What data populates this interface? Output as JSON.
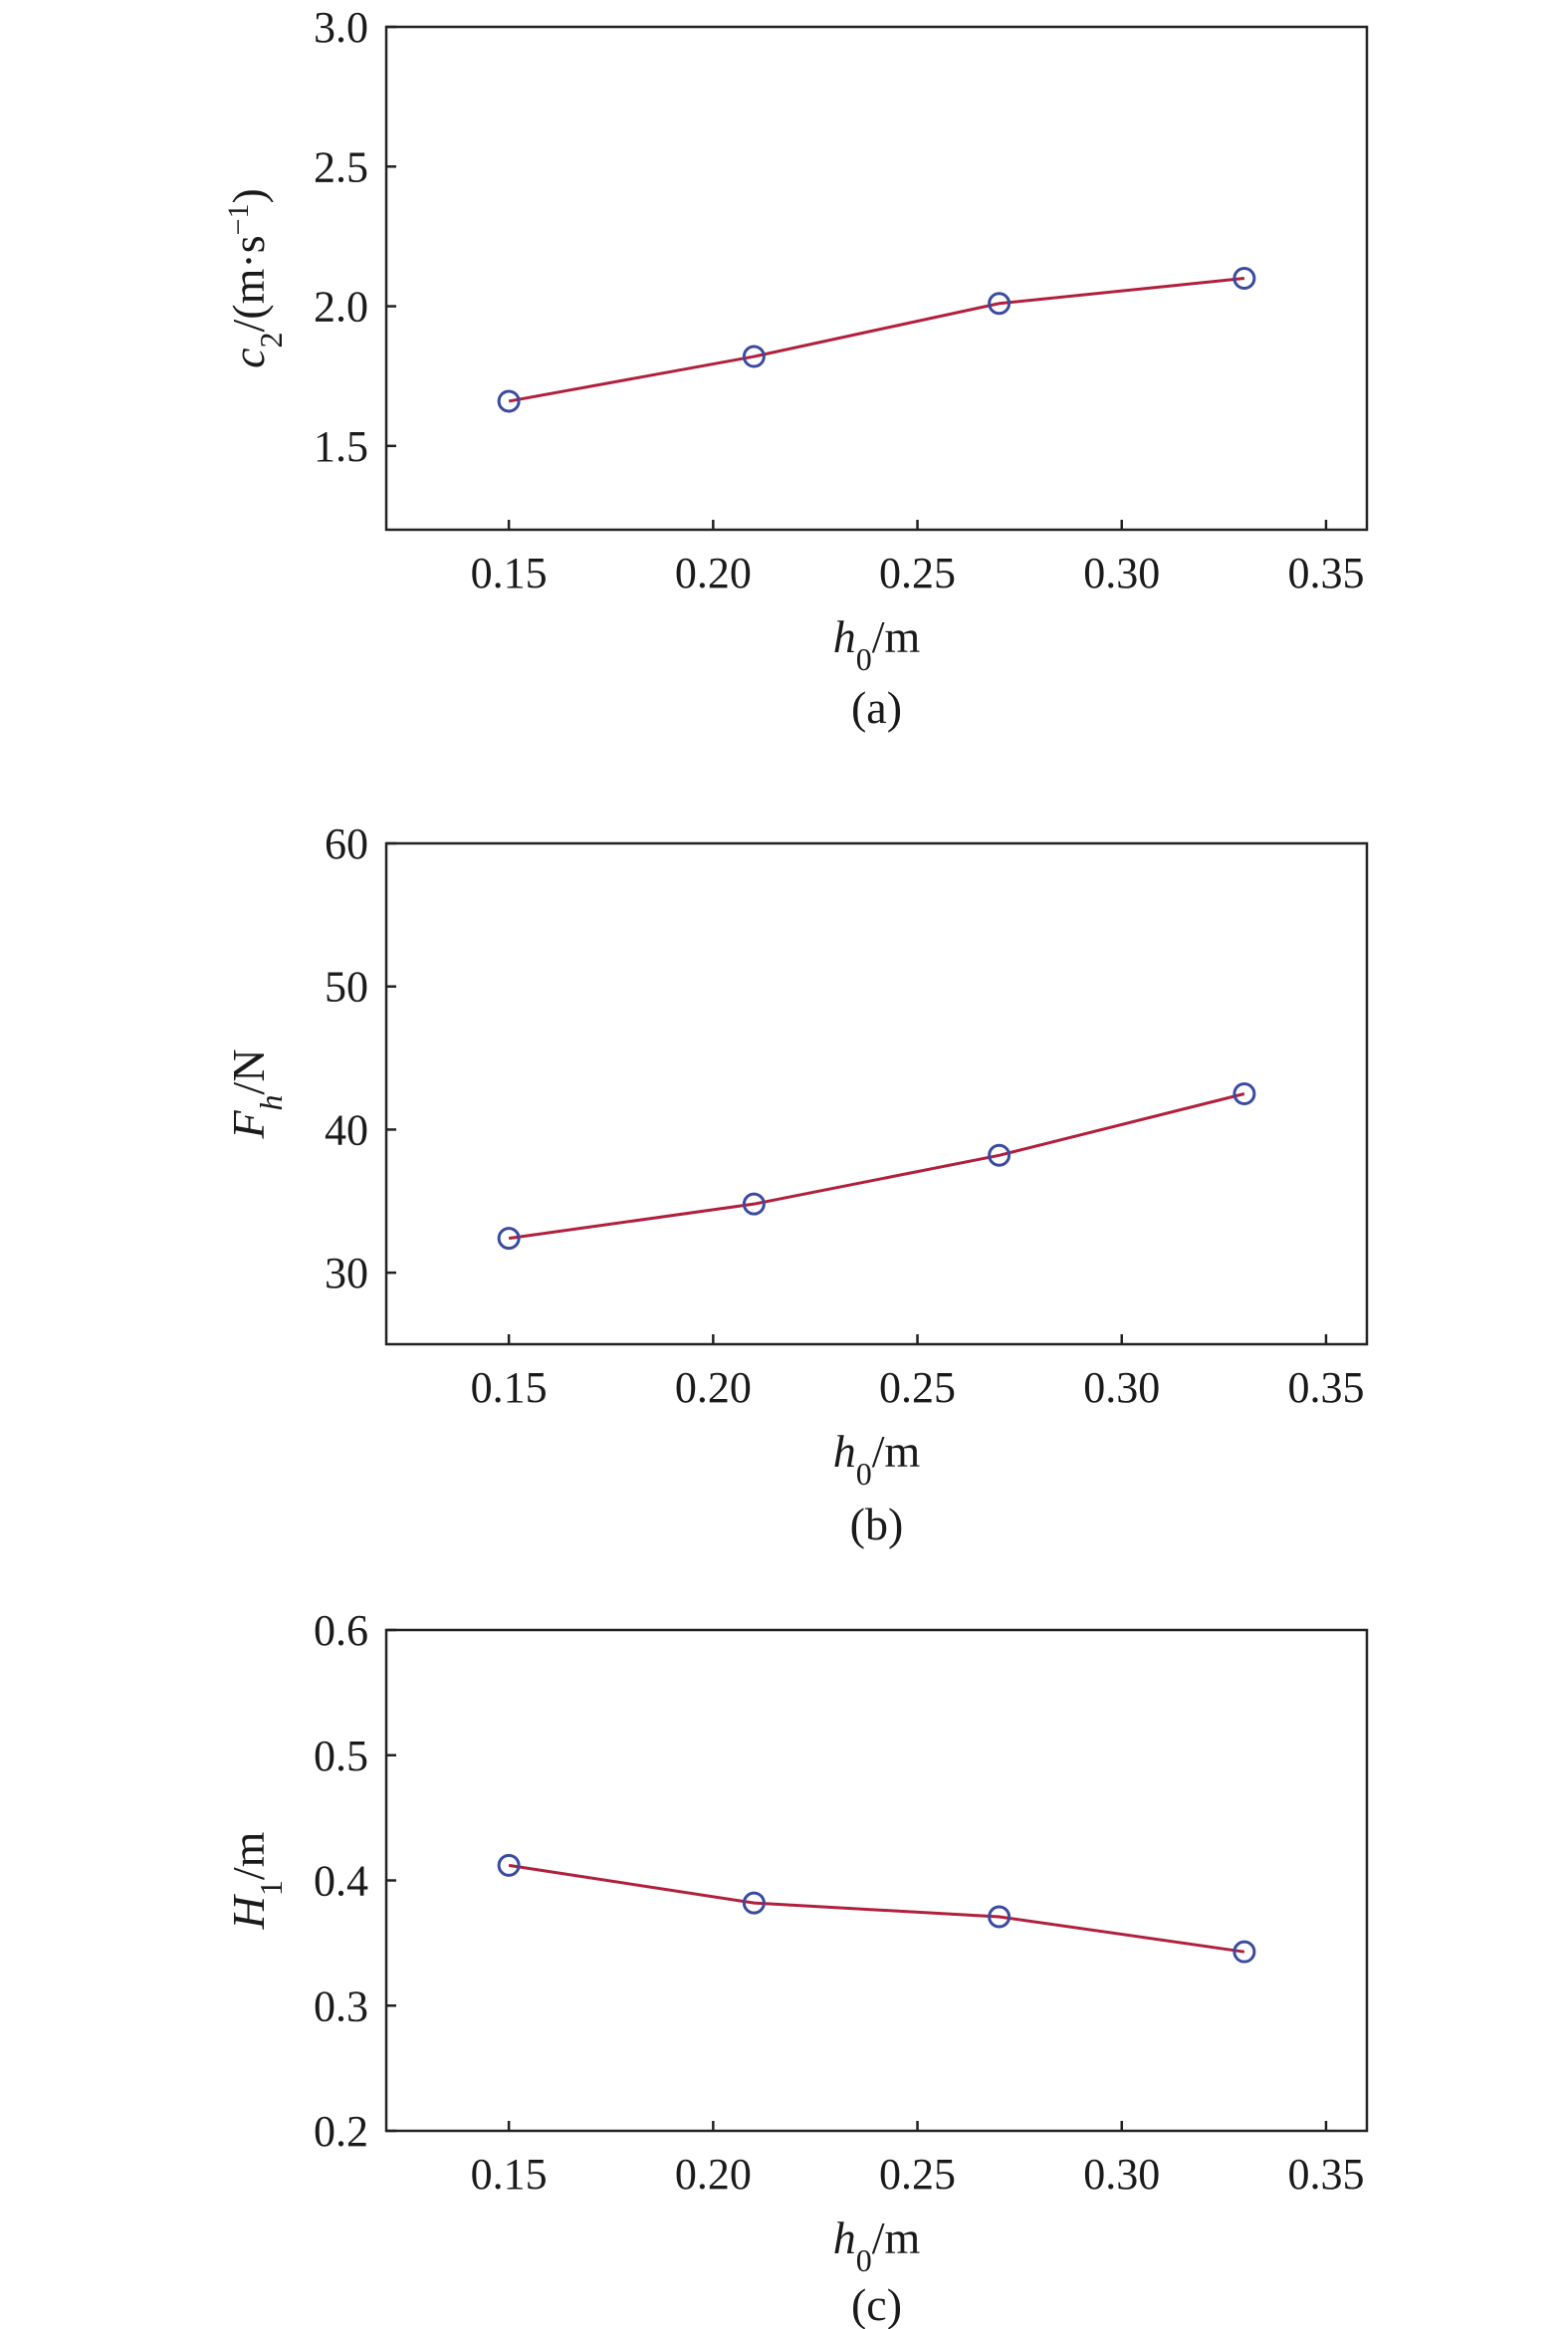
{
  "colors": {
    "line": "#b0203c",
    "marker": "#3a4aa0",
    "axis": "#222222"
  },
  "chart_data": [
    {
      "type": "line",
      "caption": "(a)",
      "xlabel": {
        "sym": "h",
        "sub": "0",
        "unit": "/m"
      },
      "ylabel": {
        "sym": "c",
        "sub": "2",
        "unit": "/(m·s",
        "sup": "−1",
        "close": ")"
      },
      "xlim": [
        0.12,
        0.36
      ],
      "ylim": [
        1.2,
        3.0
      ],
      "xticks": [
        0.15,
        0.2,
        0.25,
        0.3,
        0.35
      ],
      "xtick_labels": [
        "0.15",
        "0.20",
        "0.25",
        "0.30",
        "0.35"
      ],
      "yticks": [
        1.5,
        2.0,
        2.5,
        3.0
      ],
      "ytick_labels": [
        "1.5",
        "2.0",
        "2.5",
        "3.0"
      ],
      "series": [
        {
          "x": [
            0.15,
            0.21,
            0.27,
            0.33
          ],
          "y": [
            1.66,
            1.82,
            2.01,
            2.1
          ]
        }
      ]
    },
    {
      "type": "line",
      "caption": "(b)",
      "xlabel": {
        "sym": "h",
        "sub": "0",
        "unit": "/m"
      },
      "ylabel": {
        "sym": "F",
        "sub": "h",
        "unit": "/N"
      },
      "xlim": [
        0.12,
        0.36
      ],
      "ylim": [
        25,
        60
      ],
      "xticks": [
        0.15,
        0.2,
        0.25,
        0.3,
        0.35
      ],
      "xtick_labels": [
        "0.15",
        "0.20",
        "0.25",
        "0.30",
        "0.35"
      ],
      "yticks": [
        30,
        40,
        50,
        60
      ],
      "ytick_labels": [
        "30",
        "40",
        "50",
        "60"
      ],
      "series": [
        {
          "x": [
            0.15,
            0.21,
            0.27,
            0.33
          ],
          "y": [
            32.4,
            34.8,
            38.2,
            42.5
          ]
        }
      ]
    },
    {
      "type": "line",
      "caption": "(c)",
      "xlabel": {
        "sym": "h",
        "sub": "0",
        "unit": "/m"
      },
      "ylabel": {
        "sym": "H",
        "sub": "1",
        "unit": "/m"
      },
      "xlim": [
        0.12,
        0.36
      ],
      "ylim": [
        0.2,
        0.6
      ],
      "xticks": [
        0.15,
        0.2,
        0.25,
        0.3,
        0.35
      ],
      "xtick_labels": [
        "0.15",
        "0.20",
        "0.25",
        "0.30",
        "0.35"
      ],
      "yticks": [
        0.2,
        0.3,
        0.4,
        0.5,
        0.6
      ],
      "ytick_labels": [
        "0.2",
        "0.3",
        "0.4",
        "0.5",
        "0.6"
      ],
      "series": [
        {
          "x": [
            0.15,
            0.21,
            0.27,
            0.33
          ],
          "y": [
            0.412,
            0.382,
            0.371,
            0.343
          ]
        }
      ]
    }
  ]
}
